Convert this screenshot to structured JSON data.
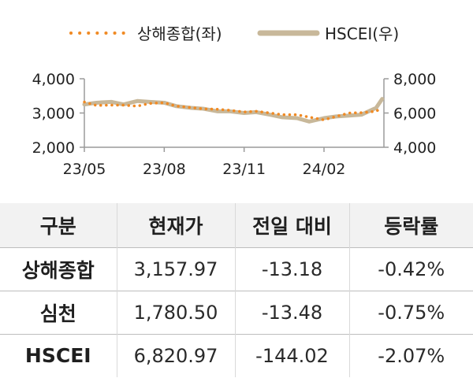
{
  "colors": {
    "shanghai": "#F08A24",
    "hscei": "#C8B89A",
    "axis": "#9a9a9a",
    "header_bg": "#f2f2f2"
  },
  "chart_data": {
    "type": "line",
    "legend": [
      {
        "name": "상해종합(좌)",
        "style": "dotted",
        "color": "#F08A24"
      },
      {
        "name": "HSCEI(우)",
        "style": "solid",
        "color": "#C8B89A"
      }
    ],
    "x_ticks": [
      "23/05",
      "23/08",
      "23/11",
      "24/02"
    ],
    "x_range": [
      "2023-05",
      "2024-04"
    ],
    "left_axis": {
      "ticks": [
        "4,000",
        "3,000",
        "2,000"
      ],
      "range": [
        2000,
        4000
      ]
    },
    "right_axis": {
      "ticks": [
        "8,000",
        "6,000",
        "4,000"
      ],
      "range": [
        4000,
        8000
      ]
    },
    "legend_position": "top",
    "grid": false,
    "series": [
      {
        "name": "상해종합(좌)",
        "axis": "left",
        "x": [
          "2023-05-01",
          "2023-05-15",
          "2023-06-01",
          "2023-06-15",
          "2023-07-01",
          "2023-07-15",
          "2023-08-01",
          "2023-08-15",
          "2023-09-01",
          "2023-09-15",
          "2023-10-01",
          "2023-10-15",
          "2023-11-01",
          "2023-11-15",
          "2023-12-01",
          "2023-12-15",
          "2024-01-01",
          "2024-01-15",
          "2024-02-01",
          "2024-02-15",
          "2024-03-01",
          "2024-03-15",
          "2024-04-01",
          "2024-04-08"
        ],
        "values": [
          3320,
          3220,
          3230,
          3230,
          3200,
          3280,
          3300,
          3200,
          3160,
          3120,
          3110,
          3080,
          3030,
          3050,
          3000,
          2950,
          2950,
          2880,
          2800,
          2900,
          3000,
          3010,
          3050,
          3158
        ]
      },
      {
        "name": "HSCEI(우)",
        "axis": "right",
        "x": [
          "2023-05-01",
          "2023-05-15",
          "2023-06-01",
          "2023-06-15",
          "2023-07-01",
          "2023-07-15",
          "2023-08-01",
          "2023-08-15",
          "2023-09-01",
          "2023-09-15",
          "2023-10-01",
          "2023-10-15",
          "2023-11-01",
          "2023-11-15",
          "2023-12-01",
          "2023-12-15",
          "2024-01-01",
          "2024-01-15",
          "2024-02-01",
          "2024-02-15",
          "2024-03-01",
          "2024-03-15",
          "2024-04-01",
          "2024-04-08"
        ],
        "values": [
          6500,
          6600,
          6650,
          6500,
          6700,
          6650,
          6600,
          6400,
          6300,
          6250,
          6100,
          6100,
          6000,
          6050,
          5900,
          5750,
          5700,
          5500,
          5700,
          5800,
          5850,
          5900,
          6300,
          6821
        ]
      }
    ]
  },
  "table": {
    "headers": [
      "구분",
      "현재가",
      "전일 대비",
      "등락률"
    ],
    "rows": [
      [
        "상해종합",
        "3,157.97",
        "-13.18",
        "-0.42%"
      ],
      [
        "심천",
        "1,780.50",
        "-13.48",
        "-0.75%"
      ],
      [
        "HSCEI",
        "6,820.97",
        "-144.02",
        "-2.07%"
      ]
    ]
  }
}
